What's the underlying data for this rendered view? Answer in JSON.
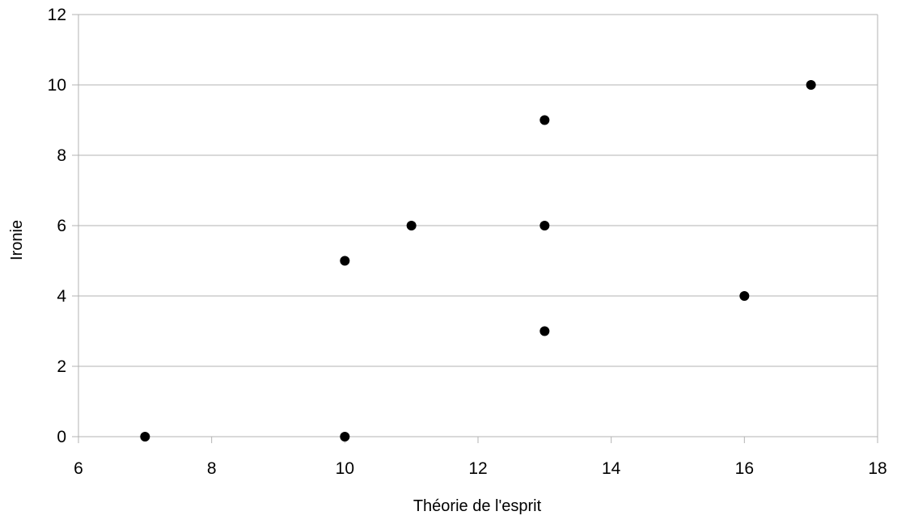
{
  "chart_data": {
    "type": "scatter",
    "title": "",
    "xlabel": "Théorie de l'esprit",
    "ylabel": "Ironie",
    "xlim": [
      6,
      18
    ],
    "ylim": [
      0,
      12
    ],
    "xticks": [
      6,
      8,
      10,
      12,
      14,
      16,
      18
    ],
    "yticks": [
      0,
      2,
      4,
      6,
      8,
      10,
      12
    ],
    "grid": {
      "horizontal": true,
      "vertical": false
    },
    "legend": "none",
    "points": [
      {
        "x": 7,
        "y": 0
      },
      {
        "x": 10,
        "y": 0
      },
      {
        "x": 10,
        "y": 5
      },
      {
        "x": 11,
        "y": 6
      },
      {
        "x": 13,
        "y": 3
      },
      {
        "x": 13,
        "y": 6
      },
      {
        "x": 13,
        "y": 9
      },
      {
        "x": 16,
        "y": 4
      },
      {
        "x": 17,
        "y": 10
      }
    ],
    "colors": {
      "marker": "#000000",
      "gridline": "#b3b3b3",
      "axis": "#b3b3b3"
    }
  }
}
